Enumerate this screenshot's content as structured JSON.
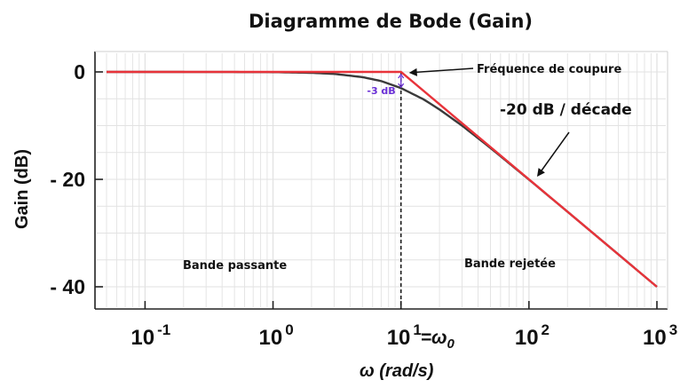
{
  "chart_data": {
    "type": "line",
    "title": "Diagramme de Bode (Gain)",
    "xlabel": "ω (rad/s)",
    "ylabel": "Gain (dB)",
    "x_scale": "log",
    "xlim": [
      0.05,
      1000
    ],
    "ylim": [
      -44,
      4
    ],
    "grid": true,
    "x_ticks": [
      {
        "value": 0.1,
        "base": "10",
        "exp": "-1"
      },
      {
        "value": 1,
        "base": "10",
        "exp": "0"
      },
      {
        "value": 10,
        "base": "10",
        "exp": "1"
      },
      {
        "value": 100,
        "base": "10",
        "exp": "2"
      },
      {
        "value": 1000,
        "base": "10",
        "exp": "3"
      }
    ],
    "x_tick_suffix": "=ω",
    "x_tick_suffix_sub": "0",
    "y_ticks": [
      {
        "value": 0,
        "label": "0"
      },
      {
        "value": -20,
        "label": "- 20"
      },
      {
        "value": -40,
        "label": "- 40"
      }
    ],
    "series": [
      {
        "kind": "real",
        "color": "#3a3a3a",
        "x": [
          0.05,
          0.1,
          0.3,
          1,
          2,
          3,
          5,
          7,
          10,
          15,
          20,
          30,
          50,
          100,
          200,
          500,
          1000
        ],
        "y": [
          0,
          0,
          -0.004,
          -0.04,
          -0.17,
          -0.37,
          -0.97,
          -1.7,
          -3.01,
          -5.1,
          -6.99,
          -10.0,
          -14.15,
          -20.04,
          -26.02,
          -33.98,
          -40.0
        ]
      },
      {
        "kind": "asymptote",
        "color": "#e8333a",
        "x": [
          0.05,
          10,
          1000
        ],
        "y": [
          0,
          0,
          -40
        ]
      }
    ],
    "cutoff": {
      "x": 10,
      "dip_y": -3,
      "label": "-3 dB"
    },
    "annotations": {
      "cutoff_label": "Fréquence de coupure",
      "slope_label": "-20 dB / décade",
      "band_pass": "Bande passante",
      "band_stop": "Bande rejetée"
    }
  },
  "colors": {
    "axis": "#222222",
    "grid": "#e2e2e2",
    "asymptote": "#e8333a",
    "real_curve": "#3a3a3a",
    "dip_marker": "#6a2fd6"
  }
}
